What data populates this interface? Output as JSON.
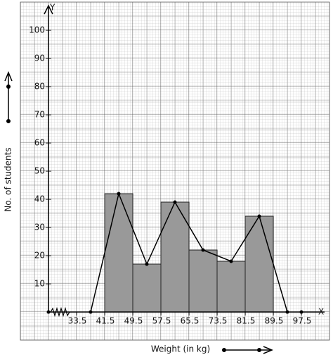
{
  "chart_data": {
    "type": "histogram",
    "y_label": "No. of students",
    "x_label": "Weight (in kg)",
    "y_axis_name": "Y",
    "x_axis_name": "X",
    "bins": [
      41.5,
      49.5,
      57.5,
      65.5,
      73.5,
      81.5,
      89.5
    ],
    "values": [
      42,
      17,
      39,
      22,
      18,
      34
    ],
    "color": "#999999",
    "polygon": {
      "x": [
        37.5,
        45.5,
        53.5,
        61.5,
        69.5,
        77.5,
        85.5,
        93.5
      ],
      "values": [
        0,
        42,
        17,
        39,
        22,
        18,
        34,
        0
      ],
      "color": "#000000"
    },
    "xlim": [
      17.5,
      105.5
    ],
    "ylim": [
      -10,
      110
    ],
    "xticks": [
      33.5,
      41.5,
      49.5,
      57.5,
      65.5,
      73.5,
      81.5,
      89.5,
      97.5
    ],
    "yticks": [
      10,
      20,
      30,
      40,
      50,
      60,
      70,
      80,
      90,
      100
    ],
    "grid": true
  }
}
